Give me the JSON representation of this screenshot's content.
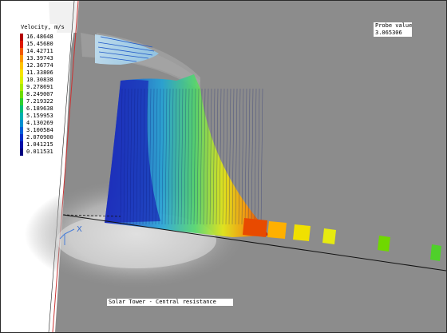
{
  "legend": {
    "title": "Velocity, m/s",
    "entries": [
      {
        "value": "16.48648",
        "color": "#b30000"
      },
      {
        "value": "15.45680",
        "color": "#e01a00"
      },
      {
        "value": "14.42711",
        "color": "#f25a00"
      },
      {
        "value": "13.39743",
        "color": "#fb9800"
      },
      {
        "value": "12.36774",
        "color": "#ffc400"
      },
      {
        "value": "11.33806",
        "color": "#f7e400"
      },
      {
        "value": "10.30838",
        "color": "#d8f000"
      },
      {
        "value": "9.278691",
        "color": "#a9ea00"
      },
      {
        "value": "8.249007",
        "color": "#6fdc00"
      },
      {
        "value": "7.219322",
        "color": "#2fcf2f"
      },
      {
        "value": "6.189638",
        "color": "#00c07a"
      },
      {
        "value": "5.159953",
        "color": "#00b0b0"
      },
      {
        "value": "4.130269",
        "color": "#0090d0"
      },
      {
        "value": "3.100584",
        "color": "#0060d8"
      },
      {
        "value": "2.070900",
        "color": "#0030c8"
      },
      {
        "value": "1.041215",
        "color": "#0010a8"
      },
      {
        "value": "0.011531",
        "color": "#000080"
      }
    ]
  },
  "probe": {
    "title": "Probe value",
    "value": "3.065306"
  },
  "caption": "Solar Tower - Central resistance",
  "axis_triad": {
    "x_label": "X"
  },
  "colors": {
    "background": "#8c8c8c",
    "ground_line": "#111111"
  }
}
